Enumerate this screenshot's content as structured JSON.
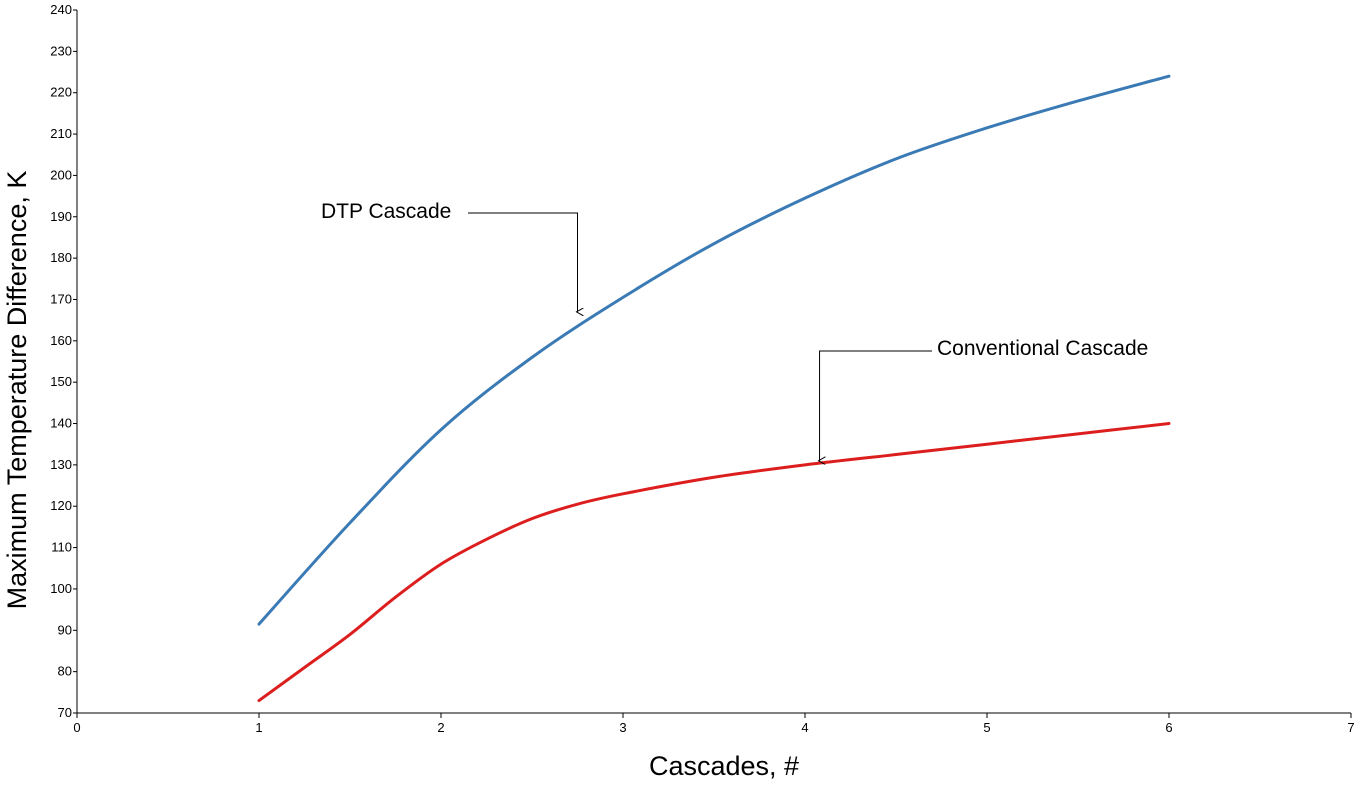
{
  "chart_data": {
    "type": "line",
    "xlabel": "Cascades, #",
    "ylabel": "Maximum Temperature Difference, K",
    "xlim": [
      0,
      7
    ],
    "ylim": [
      70,
      240
    ],
    "xticks": [
      0,
      1,
      2,
      3,
      4,
      5,
      6,
      7
    ],
    "yticks": [
      70,
      80,
      90,
      100,
      110,
      120,
      130,
      140,
      150,
      160,
      170,
      180,
      190,
      200,
      210,
      220,
      230,
      240
    ],
    "grid": false,
    "series": [
      {
        "name": "DTP Cascade",
        "color": "#3a7ab5",
        "x": [
          1,
          1.5,
          2,
          2.5,
          3,
          3.5,
          4,
          4.5,
          5,
          5.5,
          6
        ],
        "y": [
          91.5,
          116,
          138.5,
          156,
          170.5,
          183.5,
          194.5,
          204,
          211.5,
          218,
          224
        ]
      },
      {
        "name": "Conventional Cascade",
        "color": "#dd1e1e",
        "x": [
          1,
          1.25,
          1.5,
          1.75,
          2,
          2.25,
          2.5,
          2.75,
          3,
          3.5,
          4,
          4.5,
          5,
          5.5,
          6
        ],
        "y": [
          73,
          81,
          89,
          98,
          106,
          112,
          117,
          120.5,
          123,
          127,
          130,
          132.5,
          135,
          137.5,
          140
        ]
      }
    ],
    "annotations": [
      {
        "text": "DTP Cascade",
        "target": [
          2.75,
          167
        ]
      },
      {
        "text": "Conventional Cascade",
        "target": [
          4.08,
          131
        ]
      }
    ]
  }
}
